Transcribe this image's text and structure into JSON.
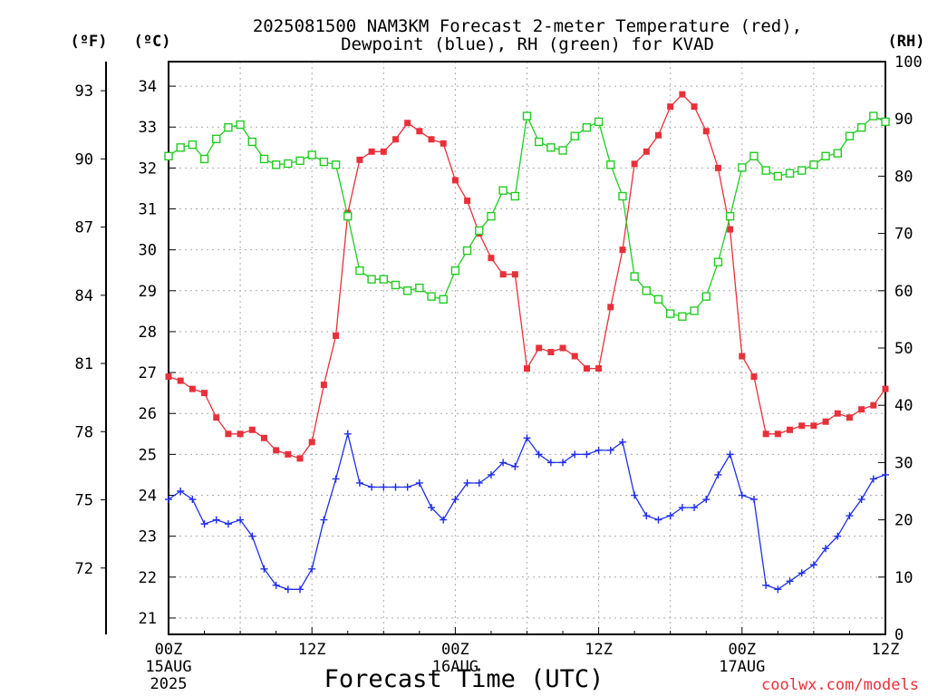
{
  "chart_data": {
    "type": "line",
    "title_line1": "2025081500 NAM3KM Forecast 2-meter Temperature (red),",
    "title_line2": "Dewpoint (blue), RH (green) for KVAD",
    "xlabel": "Forecast Time (UTC)",
    "credit": "coolwx.com/models",
    "units": {
      "fahrenheit": "(ºF)",
      "celsius": "(ºC)",
      "rh": "(RH)"
    },
    "x_range_hours": [
      0,
      60
    ],
    "x_ticks": [
      {
        "hour": 0,
        "label": "00Z",
        "sub1": "15AUG",
        "sub2": "2025"
      },
      {
        "hour": 12,
        "label": "12Z",
        "sub1": "",
        "sub2": ""
      },
      {
        "hour": 24,
        "label": "00Z",
        "sub1": "16AUG",
        "sub2": ""
      },
      {
        "hour": 36,
        "label": "12Z",
        "sub1": "",
        "sub2": ""
      },
      {
        "hour": 48,
        "label": "00Z",
        "sub1": "17AUG",
        "sub2": ""
      },
      {
        "hour": 60,
        "label": "12Z",
        "sub1": "",
        "sub2": ""
      }
    ],
    "celsius_axis": {
      "ylim": [
        20.6,
        34.6
      ],
      "ticks": [
        21,
        22,
        23,
        24,
        25,
        26,
        27,
        28,
        29,
        30,
        31,
        32,
        33,
        34
      ]
    },
    "fahrenheit_axis": {
      "ticks": [
        72,
        75,
        78,
        81,
        84,
        87,
        90,
        93
      ]
    },
    "rh_axis": {
      "ylim": [
        0,
        100
      ],
      "ticks": [
        0,
        10,
        20,
        30,
        40,
        50,
        60,
        70,
        80,
        90,
        100
      ]
    },
    "grid": true,
    "series": [
      {
        "name": "2-meter Temperature",
        "axis": "celsius",
        "color": "#e8303a",
        "marker": "filled-square",
        "values": [
          26.9,
          26.8,
          26.6,
          26.5,
          25.9,
          25.5,
          25.5,
          25.6,
          25.4,
          25.1,
          25.0,
          24.9,
          25.3,
          26.7,
          27.9,
          30.9,
          32.2,
          32.4,
          32.4,
          32.7,
          33.1,
          32.9,
          32.7,
          32.6,
          31.7,
          31.2,
          30.4,
          29.8,
          29.4,
          29.4,
          27.1,
          27.6,
          27.5,
          27.6,
          27.4,
          27.1,
          27.1,
          28.6,
          30.0,
          32.1,
          32.4,
          32.8,
          33.5,
          33.8,
          33.5,
          32.9,
          32.0,
          30.5,
          27.4,
          26.9,
          25.5,
          25.5,
          25.6,
          25.7,
          25.7,
          25.8,
          26.0,
          25.9,
          26.1,
          26.2,
          26.6
        ]
      },
      {
        "name": "Dewpoint",
        "axis": "celsius",
        "color": "#1f2ee8",
        "marker": "plus",
        "values": [
          23.9,
          24.1,
          23.9,
          23.3,
          23.4,
          23.3,
          23.4,
          23.0,
          22.2,
          21.8,
          21.7,
          21.7,
          22.2,
          23.4,
          24.4,
          25.5,
          24.3,
          24.2,
          24.2,
          24.2,
          24.2,
          24.3,
          23.7,
          23.4,
          23.9,
          24.3,
          24.3,
          24.5,
          24.8,
          24.7,
          25.4,
          25.0,
          24.8,
          24.8,
          25.0,
          25.0,
          25.1,
          25.1,
          25.3,
          24.0,
          23.5,
          23.4,
          23.5,
          23.7,
          23.7,
          23.9,
          24.5,
          25.0,
          24.0,
          23.9,
          21.8,
          21.7,
          21.9,
          22.1,
          22.3,
          22.7,
          23.0,
          23.5,
          23.9,
          24.4,
          24.5
        ]
      },
      {
        "name": "RH",
        "axis": "rh",
        "color": "#22cc22",
        "marker": "open-square",
        "values": [
          83.5,
          85,
          85.5,
          83,
          86.5,
          88.5,
          89,
          86,
          83,
          82,
          82.2,
          82.7,
          83.7,
          82.5,
          82,
          73,
          63.5,
          62,
          62,
          61,
          60,
          60.5,
          59,
          58.5,
          63.5,
          67,
          70.5,
          73,
          77.5,
          76.5,
          90.5,
          86,
          85,
          84.5,
          87,
          88.5,
          89.5,
          82,
          76.5,
          62.5,
          60,
          58.5,
          56,
          55.5,
          56.5,
          59,
          65,
          73,
          81.5,
          83.5,
          81,
          80,
          80.5,
          81,
          82,
          83.5,
          84,
          87,
          88.5,
          90.5,
          89.5
        ]
      }
    ]
  }
}
